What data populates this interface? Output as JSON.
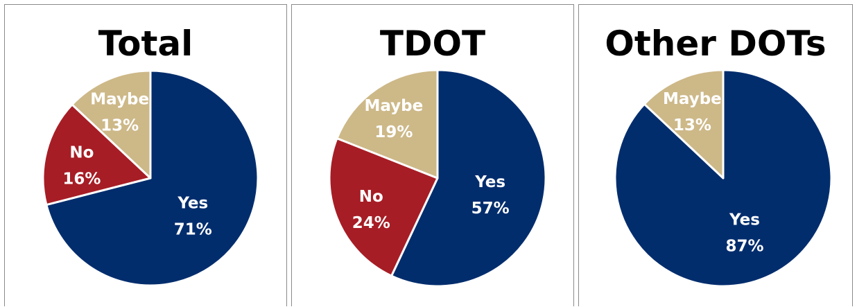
{
  "chart_data": [
    {
      "type": "pie",
      "title": "Total",
      "slices": [
        {
          "label": "Yes",
          "value": 71,
          "value_label": "71%",
          "color": "#022D6D"
        },
        {
          "label": "No",
          "value": 16,
          "value_label": "16%",
          "color": "#A71D25"
        },
        {
          "label": "Maybe",
          "value": 13,
          "value_label": "13%",
          "color": "#CDB888"
        }
      ]
    },
    {
      "type": "pie",
      "title": "TDOT",
      "slices": [
        {
          "label": "Yes",
          "value": 57,
          "value_label": "57%",
          "color": "#022D6D"
        },
        {
          "label": "No",
          "value": 24,
          "value_label": "24%",
          "color": "#A71D25"
        },
        {
          "label": "Maybe",
          "value": 19,
          "value_label": "19%",
          "color": "#CDB888"
        }
      ]
    },
    {
      "type": "pie",
      "title": "Other DOTs",
      "slices": [
        {
          "label": "Yes",
          "value": 87,
          "value_label": "87%",
          "color": "#022D6D"
        },
        {
          "label": "Maybe",
          "value": 13,
          "value_label": "13%",
          "color": "#CDB888"
        }
      ]
    }
  ]
}
